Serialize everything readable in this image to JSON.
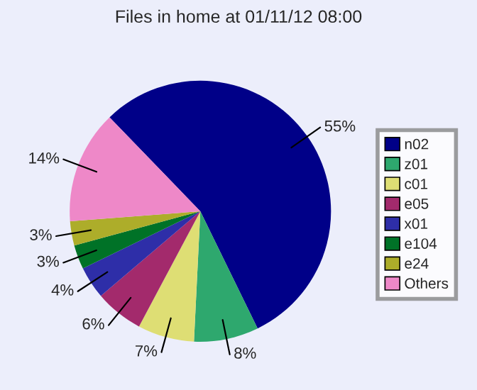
{
  "chart_data": {
    "type": "pie",
    "title": "Files in home at 01/11/12 08:00",
    "categories": [
      "n02",
      "z01",
      "c01",
      "e05",
      "x01",
      "e104",
      "e24",
      "Others"
    ],
    "values": [
      55,
      8,
      7,
      6,
      4,
      3,
      3,
      14
    ],
    "value_labels": [
      "55%",
      "8%",
      "7%",
      "6%",
      "4%",
      "3%",
      "3%",
      "14%"
    ],
    "colors": [
      "#000088",
      "#2ea86e",
      "#dede74",
      "#a32a6c",
      "#2e2ea8",
      "#007227",
      "#adad2a",
      "#ee88c8"
    ],
    "legend": "right"
  }
}
